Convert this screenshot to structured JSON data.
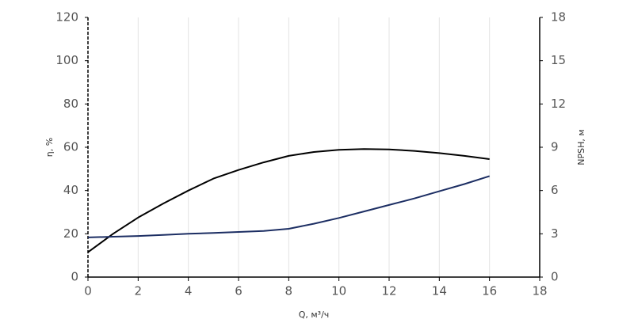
{
  "chart_data": {
    "type": "line",
    "xlabel": "Q, м³/ч",
    "ylabel": "η, %",
    "y2label": "NPSH, м",
    "x": [
      0,
      1,
      2,
      3,
      4,
      5,
      6,
      7,
      8,
      9,
      10,
      11,
      12,
      13,
      14,
      15,
      16
    ],
    "series": [
      {
        "color": "#000000",
        "values": [
          11.5,
          20,
          27.5,
          34,
          40,
          45.5,
          49.5,
          53,
          56,
          57.8,
          58.8,
          59.2,
          59,
          58.3,
          57.3,
          56,
          54.5
        ]
      },
      {
        "color": "#1c2e63",
        "axis": "y2",
        "values": [
          2.75,
          2.8,
          2.85,
          2.92,
          3.0,
          3.06,
          3.13,
          3.2,
          3.35,
          3.7,
          4.1,
          4.55,
          5.0,
          5.45,
          5.95,
          6.45,
          7.0
        ]
      }
    ],
    "xlim": [
      0,
      18
    ],
    "xticks": [
      0,
      2,
      4,
      6,
      8,
      10,
      12,
      14,
      16,
      18
    ],
    "ylim": [
      0,
      120
    ],
    "yticks": [
      0,
      20,
      40,
      60,
      80,
      100,
      120
    ],
    "y2lim": [
      0,
      18
    ],
    "y2ticks": [
      0,
      3,
      6,
      9,
      12,
      15,
      18
    ],
    "grid": true
  }
}
